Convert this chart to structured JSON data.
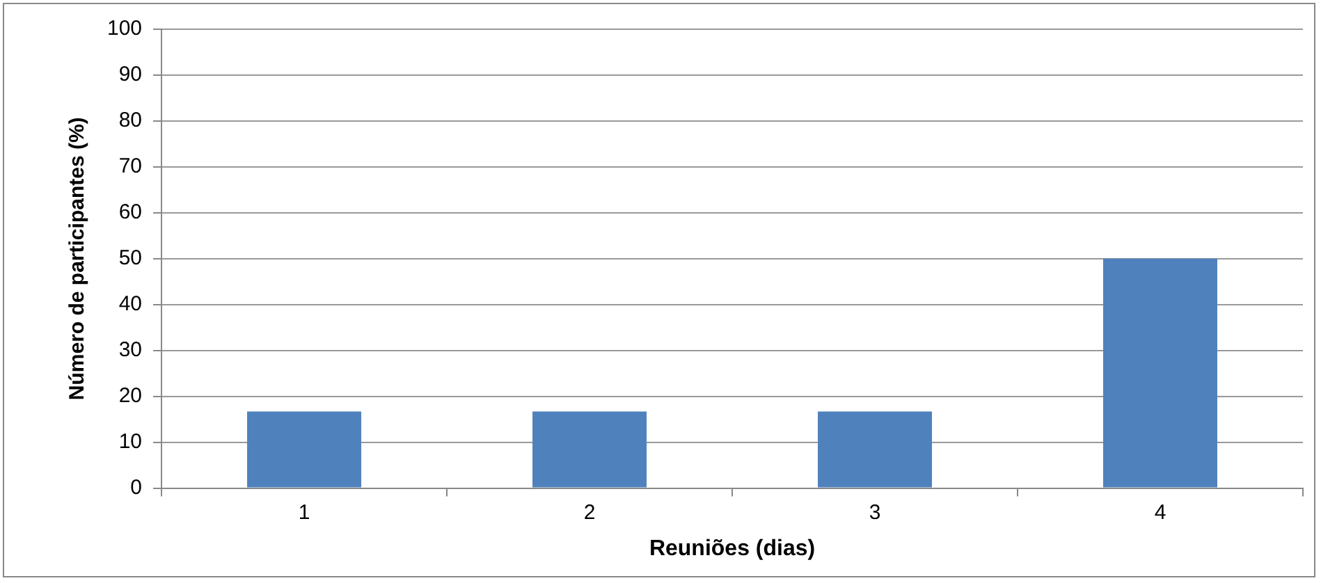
{
  "chart_data": {
    "type": "bar",
    "xlabel": "Reuniões (dias)",
    "ylabel": "Número de participantes (%)",
    "categories": [
      "1",
      "2",
      "3",
      "4"
    ],
    "values": [
      16.7,
      16.7,
      16.7,
      50
    ],
    "color": "#4f81bd",
    "ylim": [
      0,
      100
    ],
    "yticks": [
      0,
      10,
      20,
      30,
      40,
      50,
      60,
      70,
      80,
      90,
      100
    ],
    "grid": "y",
    "legend": false
  }
}
